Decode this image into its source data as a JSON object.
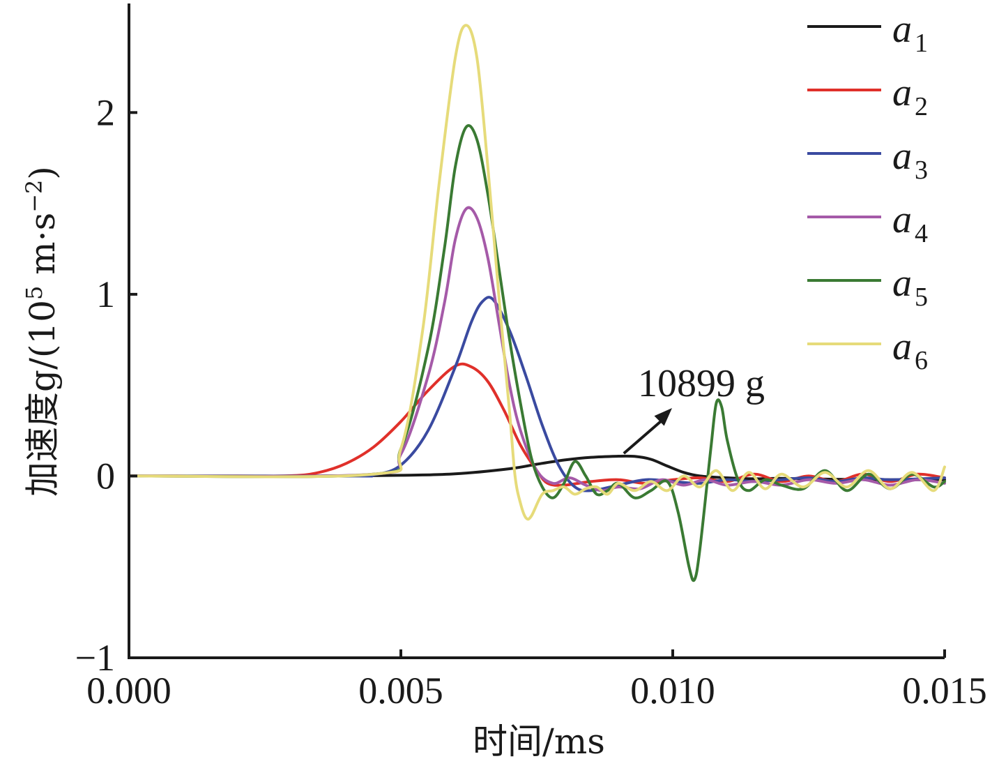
{
  "chart_data": {
    "type": "line",
    "title": "",
    "xlabel": "时间/ms",
    "ylabel_main": "加速度g/(10",
    "ylabel_exp": "5",
    "ylabel_unit": " m·s",
    "ylabel_unit_exp": "−2",
    "ylabel_close": ")",
    "xlim": [
      0.0,
      0.015
    ],
    "ylim": [
      -1.0,
      2.6
    ],
    "xticks": [
      0.0,
      0.005,
      0.01,
      0.015
    ],
    "xtick_labels": [
      "0.000",
      "0.005",
      "0.010",
      "0.015"
    ],
    "yticks": [
      -1,
      0,
      1,
      2
    ],
    "ytick_labels": [
      "−1",
      "0",
      "1",
      "2"
    ],
    "grid": false,
    "legend_position": "top-right",
    "annotation": {
      "text": "10899 g",
      "target_x": 0.0091,
      "target_y": 0.109
    },
    "series": [
      {
        "name": "a",
        "sub": "1",
        "color": "#1a1a1a",
        "points": [
          [
            0,
            0
          ],
          [
            0.001,
            0
          ],
          [
            0.002,
            0
          ],
          [
            0.003,
            0
          ],
          [
            0.004,
            0.001
          ],
          [
            0.005,
            0.004
          ],
          [
            0.006,
            0.012
          ],
          [
            0.007,
            0.04
          ],
          [
            0.0075,
            0.065
          ],
          [
            0.008,
            0.088
          ],
          [
            0.0085,
            0.103
          ],
          [
            0.009,
            0.109
          ],
          [
            0.0093,
            0.108
          ],
          [
            0.0096,
            0.092
          ],
          [
            0.0099,
            0.055
          ],
          [
            0.0102,
            0.02
          ],
          [
            0.0105,
            0.0
          ],
          [
            0.011,
            -0.01
          ],
          [
            0.0115,
            -0.015
          ],
          [
            0.012,
            -0.013
          ],
          [
            0.013,
            -0.018
          ],
          [
            0.014,
            -0.02
          ],
          [
            0.015,
            -0.02
          ]
        ]
      },
      {
        "name": "a",
        "sub": "2",
        "color": "#e0302a",
        "points": [
          [
            0,
            0
          ],
          [
            0.002,
            0
          ],
          [
            0.003,
            0.002
          ],
          [
            0.0035,
            0.02
          ],
          [
            0.004,
            0.07
          ],
          [
            0.0045,
            0.16
          ],
          [
            0.005,
            0.3
          ],
          [
            0.0055,
            0.47
          ],
          [
            0.006,
            0.605
          ],
          [
            0.0063,
            0.6
          ],
          [
            0.0066,
            0.52
          ],
          [
            0.0069,
            0.36
          ],
          [
            0.0072,
            0.17
          ],
          [
            0.0075,
            0.03
          ],
          [
            0.0077,
            -0.04
          ],
          [
            0.008,
            -0.05
          ],
          [
            0.0085,
            -0.03
          ],
          [
            0.009,
            -0.02
          ],
          [
            0.0095,
            -0.04
          ],
          [
            0.01,
            -0.02
          ],
          [
            0.0105,
            -0.01
          ],
          [
            0.011,
            -0.03
          ],
          [
            0.0115,
            0.01
          ],
          [
            0.012,
            -0.03
          ],
          [
            0.0125,
            0.0
          ],
          [
            0.013,
            -0.03
          ],
          [
            0.0135,
            0.01
          ],
          [
            0.014,
            -0.03
          ],
          [
            0.0145,
            0.01
          ],
          [
            0.015,
            -0.01
          ]
        ]
      },
      {
        "name": "a",
        "sub": "3",
        "color": "#3a4aa0",
        "points": [
          [
            0,
            0
          ],
          [
            0.004,
            0
          ],
          [
            0.0045,
            0.006
          ],
          [
            0.005,
            0.06
          ],
          [
            0.0055,
            0.25
          ],
          [
            0.006,
            0.6
          ],
          [
            0.0063,
            0.85
          ],
          [
            0.0065,
            0.96
          ],
          [
            0.0067,
            0.97
          ],
          [
            0.007,
            0.8
          ],
          [
            0.0073,
            0.55
          ],
          [
            0.0076,
            0.28
          ],
          [
            0.0079,
            0.06
          ],
          [
            0.0082,
            -0.06
          ],
          [
            0.0085,
            -0.08
          ],
          [
            0.009,
            -0.05
          ],
          [
            0.0095,
            -0.02
          ],
          [
            0.01,
            -0.03
          ],
          [
            0.0105,
            -0.04
          ],
          [
            0.011,
            -0.02
          ],
          [
            0.0115,
            -0.03
          ],
          [
            0.012,
            -0.02
          ],
          [
            0.0125,
            -0.01
          ],
          [
            0.013,
            -0.03
          ],
          [
            0.0135,
            -0.01
          ],
          [
            0.014,
            -0.02
          ],
          [
            0.015,
            -0.01
          ]
        ]
      },
      {
        "name": "a",
        "sub": "4",
        "color": "#a55aa8",
        "points": [
          [
            0,
            0
          ],
          [
            0.0045,
            0.01
          ],
          [
            0.005,
            0.12
          ],
          [
            0.0055,
            0.55
          ],
          [
            0.0058,
            0.95
          ],
          [
            0.006,
            1.3
          ],
          [
            0.0062,
            1.47
          ],
          [
            0.0064,
            1.42
          ],
          [
            0.0066,
            1.2
          ],
          [
            0.0068,
            0.85
          ],
          [
            0.007,
            0.5
          ],
          [
            0.0072,
            0.25
          ],
          [
            0.0075,
            0.03
          ],
          [
            0.0078,
            -0.04
          ],
          [
            0.0081,
            -0.01
          ],
          [
            0.0084,
            -0.05
          ],
          [
            0.0087,
            -0.08
          ],
          [
            0.009,
            -0.06
          ],
          [
            0.0094,
            -0.07
          ],
          [
            0.0098,
            -0.02
          ],
          [
            0.0102,
            -0.05
          ],
          [
            0.0106,
            -0.02
          ],
          [
            0.011,
            -0.05
          ],
          [
            0.0115,
            -0.03
          ],
          [
            0.012,
            -0.05
          ],
          [
            0.0125,
            -0.02
          ],
          [
            0.013,
            -0.04
          ],
          [
            0.0135,
            -0.02
          ],
          [
            0.014,
            -0.05
          ],
          [
            0.0145,
            -0.02
          ],
          [
            0.015,
            -0.04
          ]
        ]
      },
      {
        "name": "a",
        "sub": "5",
        "color": "#3a7a33",
        "points": [
          [
            0,
            0
          ],
          [
            0.0045,
            0.01
          ],
          [
            0.005,
            0.15
          ],
          [
            0.0055,
            0.7
          ],
          [
            0.0058,
            1.25
          ],
          [
            0.006,
            1.7
          ],
          [
            0.0062,
            1.92
          ],
          [
            0.0064,
            1.85
          ],
          [
            0.0066,
            1.55
          ],
          [
            0.0068,
            1.15
          ],
          [
            0.007,
            0.75
          ],
          [
            0.0072,
            0.4
          ],
          [
            0.0074,
            0.1
          ],
          [
            0.0076,
            -0.06
          ],
          [
            0.0078,
            -0.12
          ],
          [
            0.008,
            -0.04
          ],
          [
            0.0082,
            0.08
          ],
          [
            0.0084,
            0.0
          ],
          [
            0.0086,
            -0.1
          ],
          [
            0.0088,
            -0.08
          ],
          [
            0.009,
            -0.04
          ],
          [
            0.0093,
            -0.12
          ],
          [
            0.0096,
            -0.08
          ],
          [
            0.0099,
            -0.03
          ],
          [
            0.0101,
            -0.2
          ],
          [
            0.0103,
            -0.5
          ],
          [
            0.0104,
            -0.57
          ],
          [
            0.0105,
            -0.4
          ],
          [
            0.0107,
            0.15
          ],
          [
            0.0108,
            0.4
          ],
          [
            0.0109,
            0.38
          ],
          [
            0.011,
            0.2
          ],
          [
            0.0112,
            -0.02
          ],
          [
            0.0114,
            -0.08
          ],
          [
            0.0117,
            -0.02
          ],
          [
            0.012,
            -0.05
          ],
          [
            0.0124,
            -0.07
          ],
          [
            0.0128,
            0.03
          ],
          [
            0.0132,
            -0.08
          ],
          [
            0.0136,
            0.01
          ],
          [
            0.014,
            -0.07
          ],
          [
            0.0144,
            0.01
          ],
          [
            0.0148,
            -0.06
          ],
          [
            0.015,
            -0.03
          ]
        ]
      },
      {
        "name": "a",
        "sub": "6",
        "color": "#e6db7a",
        "points": [
          [
            0,
            0
          ],
          [
            0.0045,
            0.01
          ],
          [
            0.005,
            0.15
          ],
          [
            0.0054,
            0.8
          ],
          [
            0.0057,
            1.6
          ],
          [
            0.006,
            2.3
          ],
          [
            0.0062,
            2.48
          ],
          [
            0.0064,
            2.3
          ],
          [
            0.0066,
            1.7
          ],
          [
            0.0068,
            1.0
          ],
          [
            0.007,
            0.35
          ],
          [
            0.0071,
            0.0
          ],
          [
            0.0072,
            -0.15
          ],
          [
            0.0073,
            -0.23
          ],
          [
            0.0074,
            -0.22
          ],
          [
            0.0076,
            -0.1
          ],
          [
            0.0078,
            -0.08
          ],
          [
            0.008,
            -0.06
          ],
          [
            0.0082,
            -0.1
          ],
          [
            0.0084,
            -0.07
          ],
          [
            0.0086,
            -0.06
          ],
          [
            0.0088,
            -0.1
          ],
          [
            0.009,
            -0.04
          ],
          [
            0.0093,
            -0.08
          ],
          [
            0.0096,
            -0.03
          ],
          [
            0.0099,
            -0.08
          ],
          [
            0.0102,
            0.0
          ],
          [
            0.0105,
            -0.06
          ],
          [
            0.0108,
            0.03
          ],
          [
            0.0111,
            -0.08
          ],
          [
            0.0114,
            0.02
          ],
          [
            0.0117,
            -0.07
          ],
          [
            0.012,
            0.01
          ],
          [
            0.0124,
            -0.06
          ],
          [
            0.0128,
            0.02
          ],
          [
            0.0132,
            -0.06
          ],
          [
            0.0136,
            0.03
          ],
          [
            0.014,
            -0.07
          ],
          [
            0.0144,
            0.02
          ],
          [
            0.0148,
            -0.08
          ],
          [
            0.015,
            0.05
          ]
        ]
      }
    ]
  }
}
